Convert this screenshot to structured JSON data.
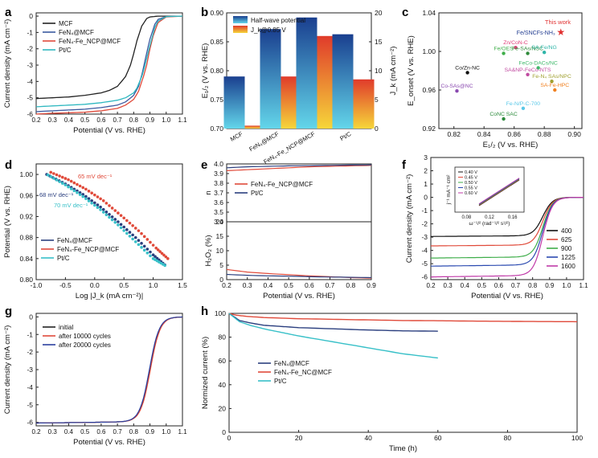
{
  "panels": {
    "a": {
      "letter": "a"
    },
    "b": {
      "letter": "b"
    },
    "c": {
      "letter": "c"
    },
    "d": {
      "letter": "d"
    },
    "e": {
      "letter": "e"
    },
    "f": {
      "letter": "f"
    },
    "g": {
      "letter": "g"
    },
    "h": {
      "letter": "h"
    }
  },
  "chart_data": [
    {
      "id": "a",
      "type": "line",
      "xlabel": "Potential (V vs. RHE)",
      "ylabel": "Current density (mA cm⁻²)",
      "xlim": [
        0.2,
        1.1
      ],
      "ylim": [
        -6,
        0.2
      ],
      "xticks": [
        "0.2",
        "0.3",
        "0.4",
        "0.5",
        "0.6",
        "0.7",
        "0.8",
        "0.9",
        "1.0",
        "1.1"
      ],
      "yticks": [
        "0",
        "-1",
        "-2",
        "-3",
        "-4",
        "-5",
        "-6"
      ],
      "legend": "top-left",
      "series": [
        {
          "name": "MCF",
          "color": "#222222",
          "x": [
            0.2,
            0.3,
            0.4,
            0.5,
            0.6,
            0.65,
            0.7,
            0.75,
            0.78,
            0.8,
            0.82,
            0.85,
            0.88,
            0.9,
            0.95,
            1.0,
            1.1
          ],
          "y": [
            -5.05,
            -5.0,
            -4.95,
            -4.85,
            -4.7,
            -4.55,
            -4.3,
            -3.7,
            -3.0,
            -2.3,
            -1.5,
            -0.6,
            -0.15,
            -0.05,
            0,
            0,
            0
          ]
        },
        {
          "name": "FeN₄@MCF",
          "color": "#3b5aa0",
          "x": [
            0.2,
            0.3,
            0.4,
            0.5,
            0.6,
            0.7,
            0.75,
            0.8,
            0.83,
            0.85,
            0.87,
            0.9,
            0.93,
            0.95,
            1.0,
            1.1
          ],
          "y": [
            -5.85,
            -5.8,
            -5.75,
            -5.7,
            -5.6,
            -5.45,
            -5.25,
            -4.85,
            -4.3,
            -3.6,
            -2.7,
            -1.4,
            -0.5,
            -0.2,
            -0.03,
            0
          ]
        },
        {
          "name": "FeN₄-Fe_NCP@MCF",
          "color": "#e04a3a",
          "x": [
            0.2,
            0.3,
            0.4,
            0.5,
            0.6,
            0.7,
            0.75,
            0.8,
            0.83,
            0.86,
            0.88,
            0.9,
            0.92,
            0.95,
            1.0,
            1.1
          ],
          "y": [
            -6.0,
            -5.95,
            -5.92,
            -5.88,
            -5.8,
            -5.65,
            -5.45,
            -5.1,
            -4.6,
            -3.7,
            -3.0,
            -2.0,
            -1.2,
            -0.4,
            -0.05,
            0
          ]
        },
        {
          "name": "Pt/C",
          "color": "#2fb8c0",
          "x": [
            0.2,
            0.3,
            0.4,
            0.5,
            0.6,
            0.7,
            0.75,
            0.8,
            0.82,
            0.85,
            0.87,
            0.9,
            0.93,
            0.95,
            1.0,
            1.1
          ],
          "y": [
            -5.55,
            -5.5,
            -5.45,
            -5.4,
            -5.3,
            -5.15,
            -5.0,
            -4.7,
            -4.4,
            -3.7,
            -3.0,
            -1.8,
            -0.7,
            -0.3,
            -0.03,
            0
          ]
        }
      ]
    },
    {
      "id": "b",
      "type": "bar",
      "categories": [
        "MCF",
        "FeN₄@MCF",
        "FeN₄-Fe_NCP@MCF",
        "Pt/C"
      ],
      "ylabel": "E₁/₂ (V vs. RHE)",
      "y2label": "J_k (mA cm⁻²)",
      "ylim": [
        0.7,
        0.9
      ],
      "y2lim": [
        0,
        20
      ],
      "yticks": [
        "0.70",
        "0.75",
        "0.80",
        "0.85",
        "0.90"
      ],
      "y2ticks": [
        "0",
        "5",
        "10",
        "15",
        "20"
      ],
      "legend": "top-left",
      "series": [
        {
          "name": "Half-wave potential",
          "axis": "left",
          "color_top": "#1a3f8f",
          "color_bottom": "#63d6ea",
          "values": [
            0.79,
            0.872,
            0.892,
            0.863
          ]
        },
        {
          "name": "J_k@0.85 V",
          "axis": "right",
          "color_top": "#e03b2b",
          "color_bottom": "#f6d63a",
          "values": [
            0.5,
            9.0,
            16.0,
            8.5
          ]
        }
      ]
    },
    {
      "id": "c",
      "type": "scatter",
      "xlabel": "E₁/₂ (V vs. RHE)",
      "ylabel": "E_onset (V vs. RHE)",
      "xlim": [
        0.81,
        0.905
      ],
      "ylim": [
        0.92,
        1.04
      ],
      "xticks": [
        "0.82",
        "0.84",
        "0.86",
        "0.88",
        "0.90"
      ],
      "yticks": [
        "0.92",
        "0.96",
        "1.00",
        "1.04"
      ],
      "annotation": "This work",
      "points": [
        {
          "label": "Fe/SNCFs-NH₃",
          "x": 0.891,
          "y": 1.02,
          "color": "#1f3a8f",
          "marker": "star"
        },
        {
          "label": "Zn/CoN-C",
          "x": 0.861,
          "y": 1.004,
          "color": "#e0407a"
        },
        {
          "label": "Fe/OES",
          "x": 0.853,
          "y": 0.998,
          "color": "#3fae4a"
        },
        {
          "label": "Fe-SAs/NSC",
          "x": 0.869,
          "y": 0.998,
          "color": "#2f8a3a"
        },
        {
          "label": "SA-Fe/NG",
          "x": 0.88,
          "y": 0.999,
          "color": "#2fb5a8"
        },
        {
          "label": "Co/Zn-NC",
          "x": 0.829,
          "y": 0.978,
          "color": "#111111"
        },
        {
          "label": "FeCo-DACs/NC",
          "x": 0.876,
          "y": 0.983,
          "color": "#3fb86a"
        },
        {
          "label": "SA&NP-FeCo-NTS",
          "x": 0.869,
          "y": 0.976,
          "color": "#c04aa0"
        },
        {
          "label": "Fe-N₄ SAs/NPC",
          "x": 0.885,
          "y": 0.969,
          "color": "#a0a030"
        },
        {
          "label": "Co-SAs@NC",
          "x": 0.822,
          "y": 0.959,
          "color": "#8a4ab0"
        },
        {
          "label": "SA-Fe-HPC",
          "x": 0.887,
          "y": 0.96,
          "color": "#f08020"
        },
        {
          "label": "Fe-N/P-C-700",
          "x": 0.866,
          "y": 0.941,
          "color": "#5ac8e8"
        },
        {
          "label": "CoNC SAC",
          "x": 0.853,
          "y": 0.93,
          "color": "#2a8a3a"
        }
      ]
    },
    {
      "id": "d",
      "type": "scatter",
      "xlabel": "Log |J_k (mA cm⁻²)|",
      "ylabel": "Potential (V vs. RHE)",
      "xlim": [
        -1.0,
        1.5
      ],
      "ylim": [
        0.8,
        1.02
      ],
      "xticks": [
        "-1.0",
        "-0.5",
        "0.0",
        "0.5",
        "1.0",
        "1.5"
      ],
      "yticks": [
        "0.80",
        "0.84",
        "0.88",
        "0.92",
        "0.96",
        "1.00"
      ],
      "legend": "bottom-left",
      "annotations": [
        "65 mV dec⁻¹",
        "68 mV dec⁻¹",
        "70 mV dec⁻¹"
      ],
      "series": [
        {
          "name": "FeN₄@MCF",
          "color": "#2b3f7f",
          "x": [
            -0.82,
            -0.5,
            -0.2,
            0.1,
            0.4,
            0.7,
            1.0,
            1.2
          ],
          "y": [
            1.0,
            0.982,
            0.962,
            0.938,
            0.91,
            0.88,
            0.847,
            0.828
          ]
        },
        {
          "name": "FeN₄-Fe_NCP@MCF",
          "color": "#e04a3a",
          "x": [
            -0.75,
            -0.45,
            -0.15,
            0.15,
            0.45,
            0.75,
            1.05,
            1.25
          ],
          "y": [
            1.004,
            0.99,
            0.972,
            0.95,
            0.922,
            0.893,
            0.86,
            0.84
          ]
        },
        {
          "name": "Pt/C",
          "color": "#38c0c8",
          "x": [
            -0.8,
            -0.5,
            -0.2,
            0.1,
            0.4,
            0.7,
            1.0,
            1.2
          ],
          "y": [
            0.999,
            0.98,
            0.958,
            0.933,
            0.904,
            0.872,
            0.84,
            0.827
          ]
        }
      ]
    },
    {
      "id": "e",
      "type": "line",
      "xlabel": "Potential (V vs. RHE)",
      "ylabel_top": "n",
      "ylabel_bottom": "H₂O₂ (%)",
      "xlim": [
        0.2,
        0.9
      ],
      "xticks": [
        "0.2",
        "0.3",
        "0.4",
        "0.5",
        "0.6",
        "0.7",
        "0.8",
        "0.9"
      ],
      "ylim_top": [
        3.4,
        4.0
      ],
      "yticks_top": [
        "3.4",
        "3.5",
        "3.6",
        "3.7",
        "3.8",
        "3.9",
        "4.0"
      ],
      "ylim_bottom": [
        0,
        20
      ],
      "yticks_bottom": [
        "0",
        "5",
        "10",
        "15",
        "20"
      ],
      "legend": "top-left",
      "series": [
        {
          "name": "FeN₄-Fe_NCP@MCF",
          "color": "#e04a3a",
          "x": [
            0.2,
            0.3,
            0.4,
            0.5,
            0.6,
            0.7,
            0.8,
            0.9
          ],
          "n": [
            3.93,
            3.94,
            3.95,
            3.96,
            3.97,
            3.975,
            3.98,
            3.985
          ],
          "h2o2": [
            3.5,
            2.6,
            2.1,
            1.7,
            1.3,
            1.0,
            0.7,
            0.5
          ]
        },
        {
          "name": "Pt/C",
          "color": "#2b3f7f",
          "x": [
            0.2,
            0.3,
            0.4,
            0.5,
            0.6,
            0.7,
            0.8,
            0.9
          ],
          "n": [
            3.96,
            3.97,
            3.975,
            3.98,
            3.982,
            3.985,
            3.988,
            3.99
          ],
          "h2o2": [
            1.8,
            1.5,
            1.3,
            1.2,
            1.0,
            0.9,
            0.8,
            0.7
          ]
        }
      ]
    },
    {
      "id": "f",
      "type": "line",
      "xlabel": "Potential (V vs. RHE)",
      "ylabel": "Current density (mA cm⁻²)",
      "xlim": [
        0.2,
        1.1
      ],
      "ylim": [
        -6.2,
        3
      ],
      "xticks": [
        "0.2",
        "0.3",
        "0.4",
        "0.5",
        "0.6",
        "0.7",
        "0.8",
        "0.9",
        "1.0",
        "1.1"
      ],
      "yticks": [
        "3",
        "2",
        "1",
        "0",
        "-1",
        "-2",
        "-3",
        "-4",
        "-5",
        "-6"
      ],
      "legend": "bottom-right",
      "series": [
        {
          "name": "400",
          "color": "#111111",
          "plateau": -2.9
        },
        {
          "name": "625",
          "color": "#e04a3a",
          "plateau": -3.6
        },
        {
          "name": "900",
          "color": "#3fae4a",
          "plateau": -4.5
        },
        {
          "name": "1225",
          "color": "#2b4ab0",
          "plateau": -5.1
        },
        {
          "name": "1600",
          "color": "#c03aa8",
          "plateau": -5.9
        }
      ],
      "inset": {
        "xlabel": "ω⁻¹/² (rad⁻¹/² s¹/²)",
        "ylabel": "j⁻¹ mA⁻¹ cm²",
        "xticks": [
          "0.08",
          "0.12",
          "0.16"
        ],
        "legend": [
          "0.40 V",
          "0.45 V",
          "0.50 V",
          "0.55 V",
          "0.60 V"
        ]
      }
    },
    {
      "id": "g",
      "type": "line",
      "xlabel": "Potential (V vs. RHE)",
      "ylabel": "Current density (mA cm⁻²)",
      "xlim": [
        0.2,
        1.1
      ],
      "ylim": [
        -6.2,
        0.2
      ],
      "xticks": [
        "0.2",
        "0.3",
        "0.4",
        "0.5",
        "0.6",
        "0.7",
        "0.8",
        "0.9",
        "1.0",
        "1.1"
      ],
      "yticks": [
        "0",
        "-1",
        "-2",
        "-3",
        "-4",
        "-5",
        "-6"
      ],
      "legend": "top-left",
      "series": [
        {
          "name": "initial",
          "color": "#222222"
        },
        {
          "name": "after 10000 cycles",
          "color": "#e04a3a"
        },
        {
          "name": "after 20000 cycles",
          "color": "#2b3f9f"
        }
      ]
    },
    {
      "id": "h",
      "type": "line",
      "xlabel": "Time (h)",
      "ylabel": "Normized current (%)",
      "xlim": [
        0,
        100
      ],
      "ylim": [
        0,
        100
      ],
      "xticks": [
        "0",
        "20",
        "40",
        "60",
        "80",
        "100"
      ],
      "yticks": [
        "0",
        "20",
        "40",
        "60",
        "80",
        "100"
      ],
      "legend": "bottom-left",
      "series": [
        {
          "name": "FeN₄@MCF",
          "color": "#2b3f7f",
          "x": [
            0,
            3,
            6,
            10,
            15,
            20,
            30,
            40,
            50,
            60
          ],
          "y": [
            100,
            94,
            92,
            90,
            89,
            88,
            87,
            86,
            85.3,
            85
          ]
        },
        {
          "name": "FeN₄-Fe_NC@MCF",
          "color": "#e04a3a",
          "x": [
            0,
            2,
            5,
            10,
            20,
            30,
            40,
            50,
            60,
            70,
            80,
            90,
            100
          ],
          "y": [
            100,
            98.5,
            97.5,
            96.5,
            95.5,
            95,
            94.5,
            94,
            93.8,
            93.5,
            93.3,
            93.1,
            93
          ]
        },
        {
          "name": "Pt/C",
          "color": "#38c0c8",
          "x": [
            0,
            3,
            6,
            10,
            15,
            20,
            30,
            40,
            50,
            60
          ],
          "y": [
            100,
            93,
            90,
            87,
            84,
            81,
            76,
            71,
            66,
            62.5
          ]
        }
      ]
    }
  ]
}
